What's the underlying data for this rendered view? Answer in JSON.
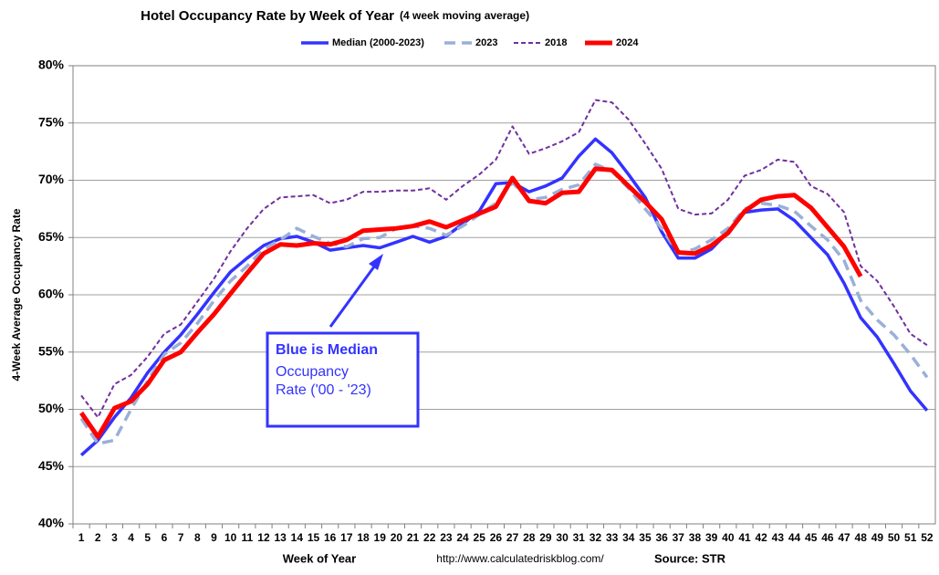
{
  "chart_data": {
    "type": "line",
    "title": "Hotel Occupancy Rate by  Week of Year",
    "subtitle": "(4 week moving average)",
    "x_label": "Week of Year",
    "y_label": "4-Week Average Occupancy Rate",
    "source_url": "http://www.calculatedriskblog.com/",
    "source": "Source: STR",
    "annotation": [
      "Blue is Median",
      "Occupancy",
      "Rate ('00 - '23)"
    ],
    "categories": [
      1,
      2,
      3,
      4,
      5,
      6,
      7,
      8,
      9,
      10,
      11,
      12,
      13,
      14,
      15,
      16,
      17,
      18,
      19,
      20,
      21,
      22,
      23,
      24,
      25,
      26,
      27,
      28,
      29,
      30,
      31,
      32,
      33,
      34,
      35,
      36,
      37,
      38,
      39,
      40,
      41,
      42,
      43,
      44,
      45,
      46,
      47,
      48,
      49,
      50,
      51,
      52
    ],
    "ylim": [
      40,
      80
    ],
    "yticks": [
      {
        "value": 40,
        "label": "40%"
      },
      {
        "value": 45,
        "label": "45%"
      },
      {
        "value": 50,
        "label": "50%"
      },
      {
        "value": 55,
        "label": "55%"
      },
      {
        "value": 60,
        "label": "60%"
      },
      {
        "value": 65,
        "label": "65%"
      },
      {
        "value": 70,
        "label": "70%"
      },
      {
        "value": 75,
        "label": "75%"
      },
      {
        "value": 80,
        "label": "80%"
      }
    ],
    "grid": true,
    "legend": "top",
    "series": [
      {
        "name": "Median (2000-2023)",
        "color": "#3333ff",
        "style": "solid",
        "width": 3.5,
        "values": [
          46.0,
          47.3,
          49.3,
          51.0,
          53.2,
          55.0,
          56.5,
          58.3,
          60.2,
          62.0,
          63.2,
          64.3,
          64.9,
          65.1,
          64.6,
          63.9,
          64.1,
          64.3,
          64.1,
          64.6,
          65.1,
          64.6,
          65.1,
          66.2,
          67.3,
          69.7,
          69.8,
          69.0,
          69.5,
          70.2,
          72.1,
          73.6,
          72.4,
          70.5,
          68.5,
          65.5,
          63.2,
          63.2,
          64.0,
          65.5,
          67.2,
          67.4,
          67.5,
          66.5,
          65.0,
          63.5,
          61.0,
          58.0,
          56.3,
          54.0,
          51.6,
          49.9
        ]
      },
      {
        "name": "2023",
        "color": "#9ab0d8",
        "style": "dashed",
        "width": 3.5,
        "values": [
          49.2,
          47.0,
          47.3,
          50.0,
          52.5,
          54.8,
          55.8,
          57.5,
          59.5,
          61.2,
          62.5,
          64.0,
          64.8,
          65.8,
          65.1,
          64.5,
          64.2,
          64.9,
          65.0,
          65.8,
          66.0,
          65.8,
          65.2,
          66.0,
          67.0,
          68.0,
          69.8,
          68.3,
          68.5,
          69.2,
          69.6,
          71.4,
          70.8,
          69.3,
          67.5,
          65.8,
          63.6,
          64.0,
          64.8,
          65.8,
          67.5,
          68.0,
          67.8,
          67.3,
          66.0,
          64.8,
          63.0,
          59.5,
          57.8,
          56.5,
          54.8,
          52.8
        ]
      },
      {
        "name": "2018",
        "color": "#7030a0",
        "style": "dotted",
        "width": 2,
        "values": [
          51.2,
          49.3,
          52.2,
          53.0,
          54.6,
          56.6,
          57.4,
          59.4,
          61.4,
          63.8,
          65.8,
          67.5,
          68.5,
          68.6,
          68.7,
          68.0,
          68.3,
          69.0,
          69.0,
          69.1,
          69.1,
          69.3,
          68.3,
          69.5,
          70.5,
          71.8,
          74.7,
          72.3,
          72.8,
          73.4,
          74.2,
          77.0,
          76.8,
          75.3,
          73.2,
          71.0,
          67.5,
          67.0,
          67.1,
          68.3,
          70.4,
          70.9,
          71.8,
          71.6,
          69.5,
          68.8,
          67.2,
          62.5,
          61.2,
          59.0,
          56.6,
          55.6
        ]
      },
      {
        "name": "2024",
        "color": "#ff0000",
        "style": "solid",
        "width": 5,
        "values": [
          49.7,
          47.6,
          50.1,
          50.7,
          52.2,
          54.3,
          55.0,
          56.7,
          58.3,
          60.1,
          61.9,
          63.6,
          64.4,
          64.3,
          64.5,
          64.4,
          64.8,
          65.6,
          65.7,
          65.8,
          66.0,
          66.4,
          65.9,
          66.5,
          67.1,
          67.7,
          70.2,
          68.2,
          68.0,
          68.9,
          69.0,
          71.0,
          70.9,
          69.5,
          68.1,
          66.6,
          63.7,
          63.6,
          64.3,
          65.4,
          67.3,
          68.3,
          68.6,
          68.7,
          67.6,
          65.9,
          64.2,
          61.6,
          null,
          null,
          null,
          null
        ]
      }
    ]
  }
}
